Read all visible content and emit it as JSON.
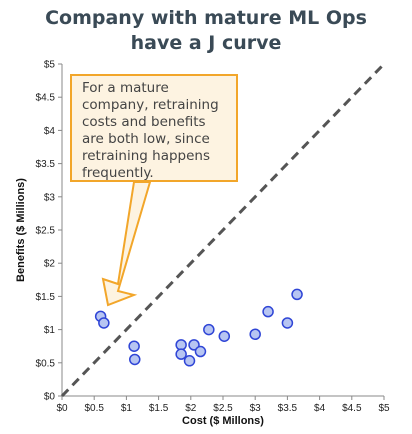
{
  "title_line1": "Company with mature ML Ops",
  "title_line2": "have a J curve",
  "annotation": [
    "For a mature",
    "company, retraining",
    "costs and benefits",
    "are both low, since",
    "retraining happens",
    "frequently."
  ],
  "colors": {
    "point_fill": "#b7c5f2",
    "point_stroke": "#2f45d6",
    "diagonal": "#555555",
    "callout_fill": "#fdf3e1",
    "callout_stroke": "#f2a62a",
    "title": "#3a4a56"
  },
  "chart_data": {
    "type": "scatter",
    "xlabel": "Cost ($ Millons)",
    "ylabel": "Benefits ($ Millions)",
    "xlim": [
      0,
      5
    ],
    "ylim": [
      0,
      5
    ],
    "x_ticks": [
      "$0",
      "$0.5",
      "$1",
      "$1.5",
      "$2",
      "$2.5",
      "$3",
      "$3.5",
      "$4",
      "$4.5",
      "$5"
    ],
    "y_ticks": [
      "$0",
      "$0.5",
      "$1",
      "$1.5",
      "$2",
      "$2.5",
      "$3",
      "$3.5",
      "$4",
      "$4.5",
      "$5"
    ],
    "grid": false,
    "reference_line": {
      "style": "dashed",
      "from": [
        0,
        0
      ],
      "to": [
        5,
        5
      ]
    },
    "points": [
      {
        "x": 0.6,
        "y": 1.2
      },
      {
        "x": 0.65,
        "y": 1.1
      },
      {
        "x": 1.12,
        "y": 0.75
      },
      {
        "x": 1.13,
        "y": 0.55
      },
      {
        "x": 1.85,
        "y": 0.77
      },
      {
        "x": 1.85,
        "y": 0.63
      },
      {
        "x": 1.98,
        "y": 0.53
      },
      {
        "x": 2.05,
        "y": 0.77
      },
      {
        "x": 2.15,
        "y": 0.67
      },
      {
        "x": 2.28,
        "y": 1.0
      },
      {
        "x": 2.52,
        "y": 0.9
      },
      {
        "x": 3.0,
        "y": 0.93
      },
      {
        "x": 3.2,
        "y": 1.27
      },
      {
        "x": 3.5,
        "y": 1.1
      },
      {
        "x": 3.65,
        "y": 1.53
      }
    ]
  }
}
